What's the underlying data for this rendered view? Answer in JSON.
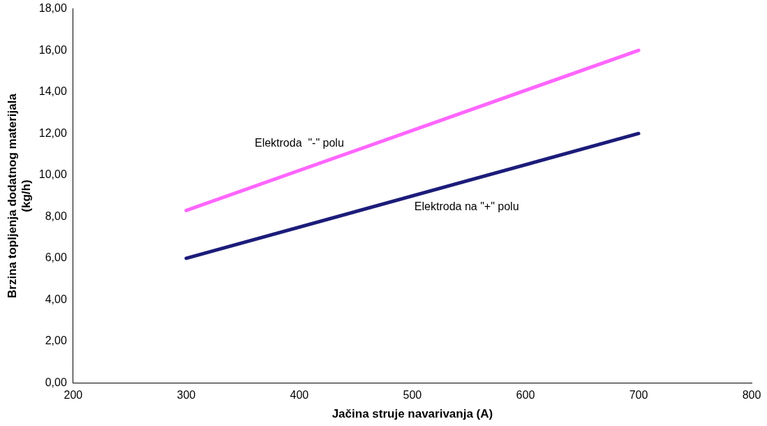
{
  "chart_data": {
    "type": "line",
    "xlabel": "Jačina struje navarivanja (A)",
    "ylabel": "Brzina topljenja dodatnog materijala\n(kg/h)",
    "x": [
      300,
      700
    ],
    "series": [
      {
        "name": "Elektroda  \"-\" polu",
        "color": "#ff66ff",
        "values": [
          8.3,
          16.0
        ]
      },
      {
        "name": "Elektroda na \"+\" polu",
        "color": "#1c1c7a",
        "values": [
          6.0,
          12.0
        ]
      }
    ],
    "xlim": [
      200,
      800
    ],
    "xticks": [
      200,
      300,
      400,
      500,
      600,
      700,
      800
    ],
    "ylim": [
      0,
      18
    ],
    "yticks": [
      {
        "value": 0,
        "label": "0,00"
      },
      {
        "value": 2,
        "label": "2,00"
      },
      {
        "value": 4,
        "label": "4,00"
      },
      {
        "value": 6,
        "label": "6,00"
      },
      {
        "value": 8,
        "label": "8,00"
      },
      {
        "value": 10,
        "label": "10,00"
      },
      {
        "value": 12,
        "label": "12,00"
      },
      {
        "value": 14,
        "label": "14,00"
      },
      {
        "value": 16,
        "label": "16,00"
      },
      {
        "value": 18,
        "label": "18,00"
      }
    ],
    "grid": false,
    "legend": false,
    "marker": "none",
    "line_style": "solid"
  }
}
